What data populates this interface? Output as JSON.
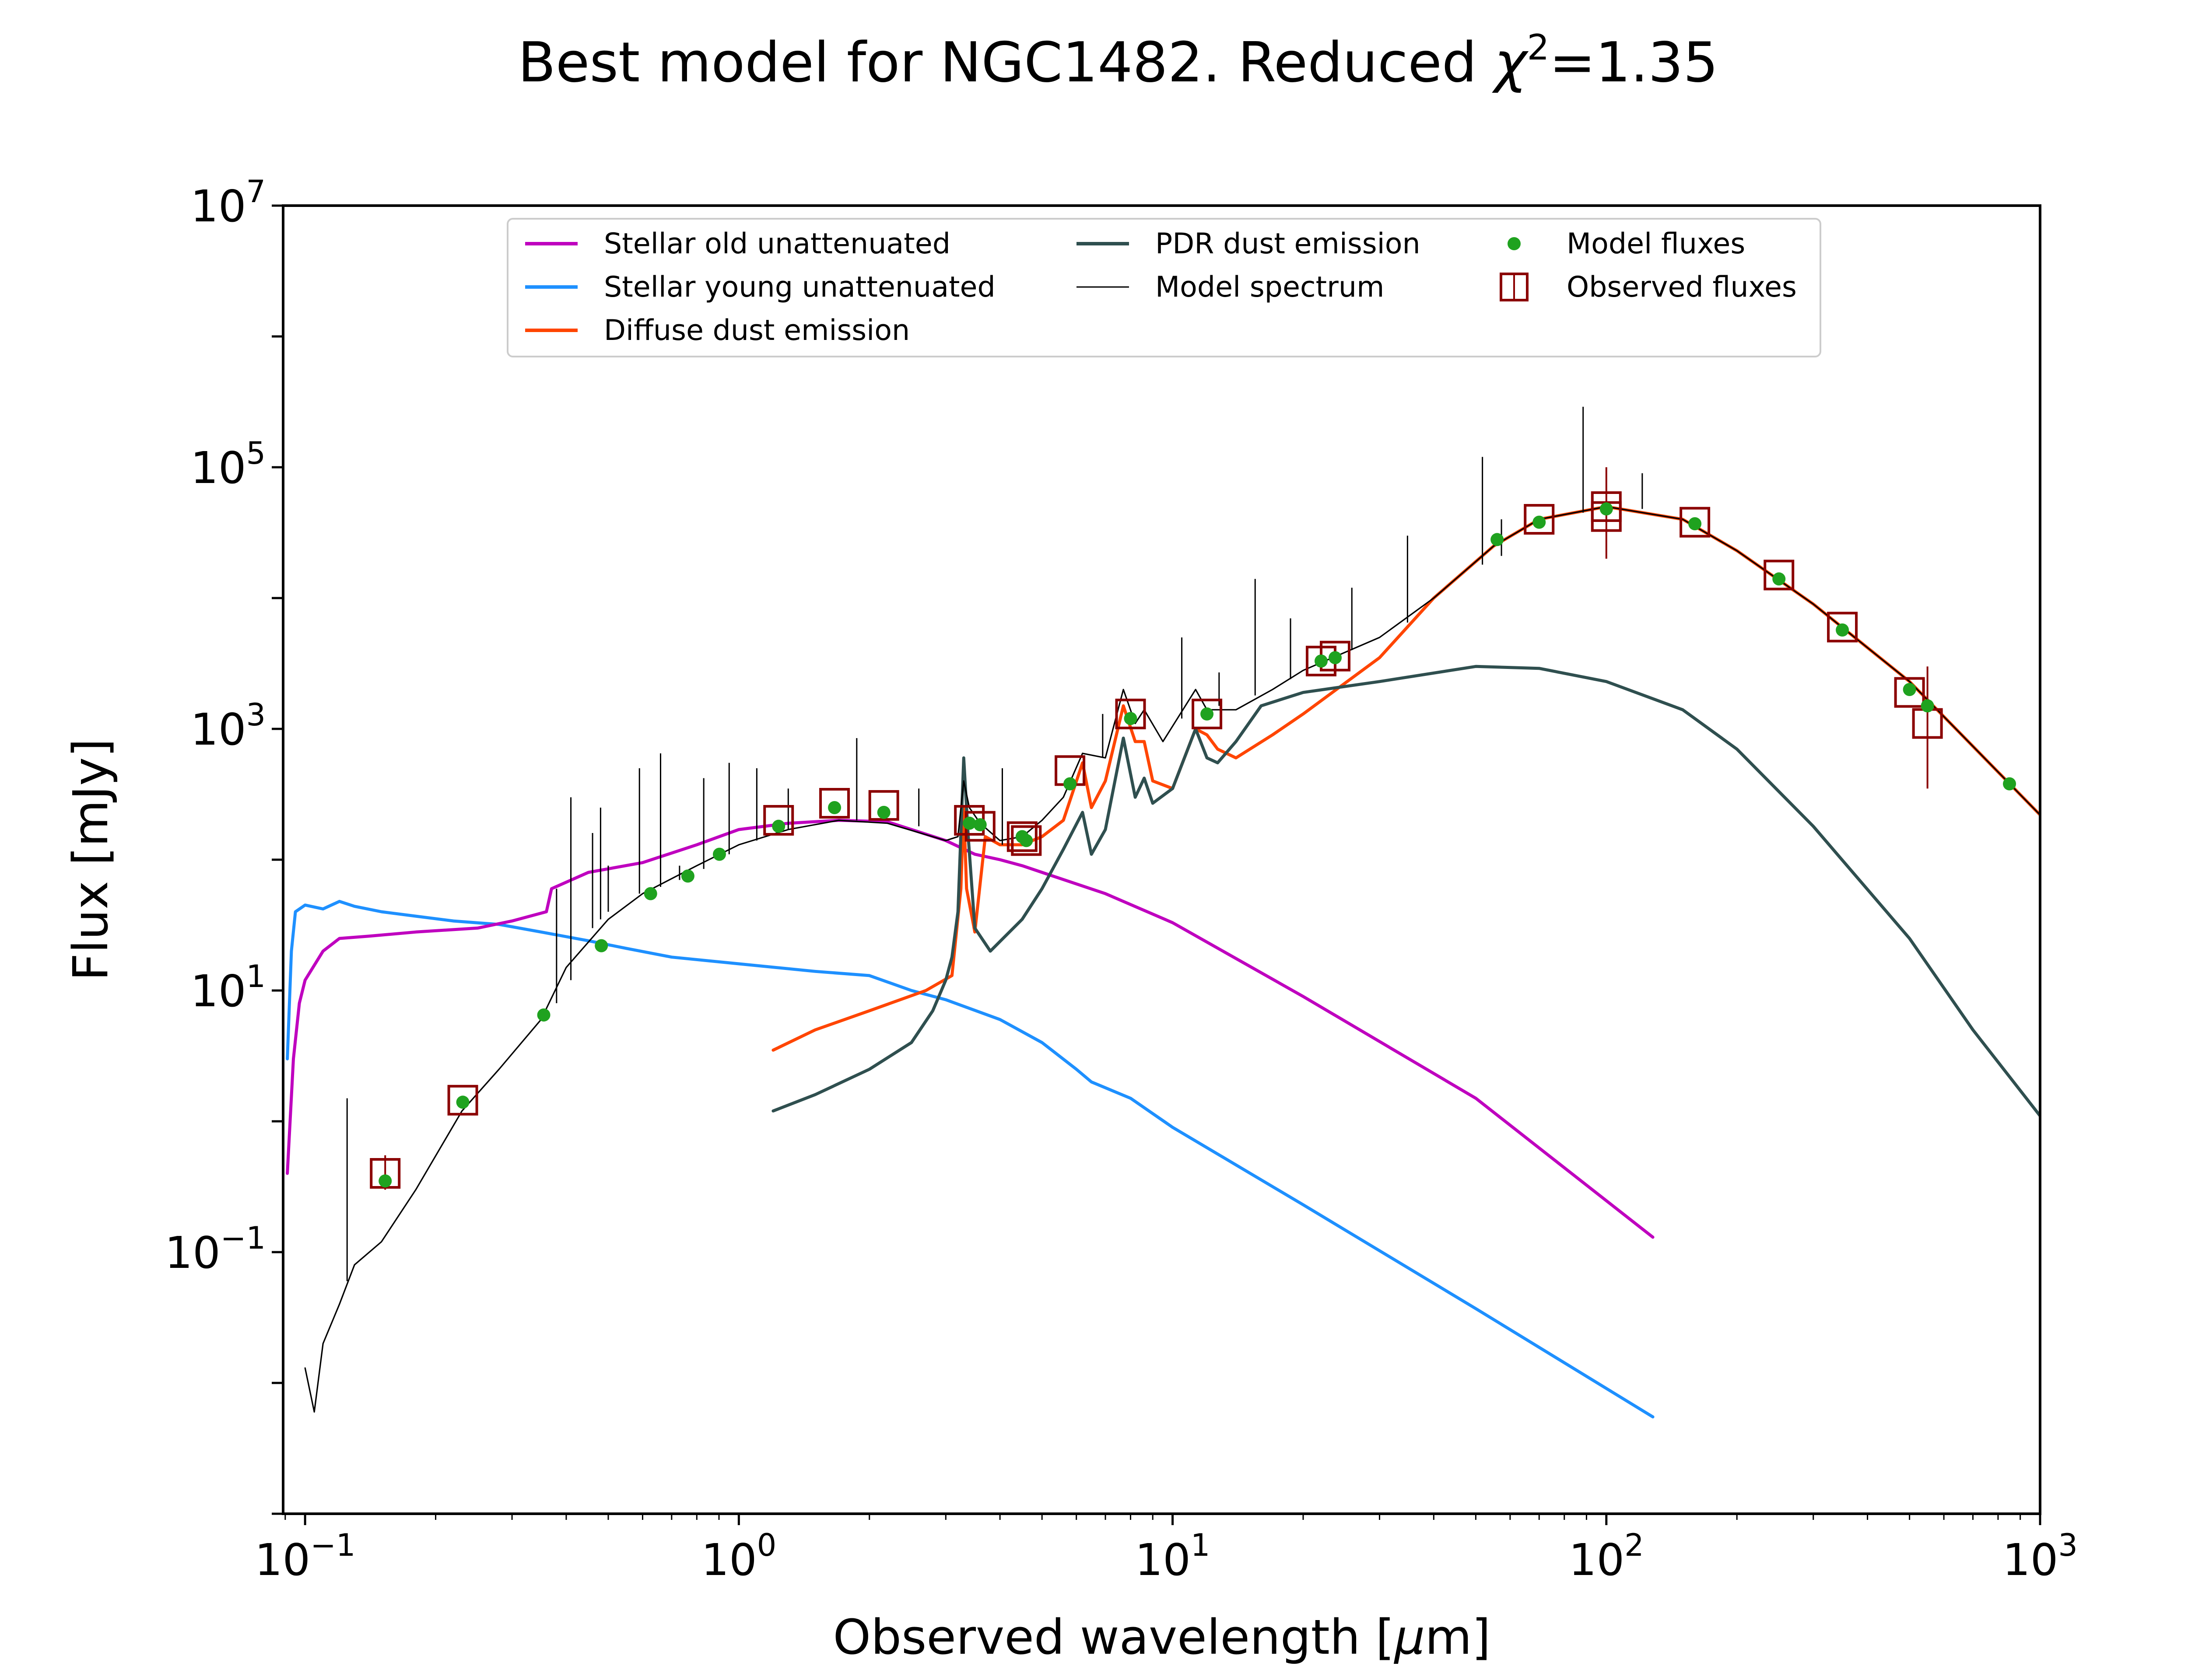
{
  "chart_data": {
    "type": "line",
    "title": "Best model for NGC1482. Reduced χ²=1.35",
    "title_parts": {
      "prefix": "Best model for NGC1482. Reduced ",
      "symbol": "χ",
      "exponent": "2",
      "suffix": "=1.35"
    },
    "xlabel": "Observed wavelength [μm]",
    "xlabel_parts": {
      "prefix": "Observed wavelength [",
      "mu": "μ",
      "suffix": "m]"
    },
    "ylabel": "Flux [mJy]",
    "x_scale": "log",
    "y_scale": "log",
    "xlim": [
      0.089,
      1000
    ],
    "ylim": [
      0.001,
      10000000
    ],
    "x_ticks": [
      {
        "value": 0.1,
        "base": "10",
        "exp": "−1"
      },
      {
        "value": 1,
        "base": "10",
        "exp": "0"
      },
      {
        "value": 10,
        "base": "10",
        "exp": "1"
      },
      {
        "value": 100,
        "base": "10",
        "exp": "2"
      },
      {
        "value": 1000,
        "base": "10",
        "exp": "3"
      }
    ],
    "y_ticks": [
      {
        "value": 0.1,
        "base": "10",
        "exp": "−1"
      },
      {
        "value": 10,
        "base": "10",
        "exp": "1"
      },
      {
        "value": 1000,
        "base": "10",
        "exp": "3"
      },
      {
        "value": 100000,
        "base": "10",
        "exp": "5"
      },
      {
        "value": 10000000,
        "base": "10",
        "exp": "7"
      }
    ],
    "grid": false,
    "legend_position": "top-center",
    "legend": [
      {
        "label": "Stellar old unattenuated",
        "color": "#bf00bf",
        "kind": "line",
        "series": "stellar_old"
      },
      {
        "label": "Stellar young unattenuated",
        "color": "#1e90ff",
        "kind": "line",
        "series": "stellar_young"
      },
      {
        "label": "Diffuse dust emission",
        "color": "#ff4500",
        "kind": "line",
        "series": "diffuse_dust"
      },
      {
        "label": "PDR dust emission",
        "color": "#2f4f4f",
        "kind": "line",
        "series": "pdr_dust"
      },
      {
        "label": "Model spectrum",
        "color": "#000000",
        "kind": "thin-line",
        "series": "model_spectrum"
      },
      {
        "label": "Model fluxes",
        "color": "#1fa21f",
        "kind": "dot",
        "series": "model_fluxes"
      },
      {
        "label": "Observed fluxes",
        "color": "#8b0000",
        "kind": "square",
        "series": "observed_fluxes"
      }
    ],
    "series": [
      {
        "id": "stellar_young",
        "name": "Stellar young unattenuated",
        "color": "#1e90ff",
        "width": 7,
        "points": [
          [
            0.091,
            3
          ],
          [
            0.093,
            20
          ],
          [
            0.095,
            40
          ],
          [
            0.1,
            45
          ],
          [
            0.11,
            42
          ],
          [
            0.12,
            48
          ],
          [
            0.13,
            44
          ],
          [
            0.15,
            40
          ],
          [
            0.18,
            37
          ],
          [
            0.22,
            34
          ],
          [
            0.28,
            32
          ],
          [
            0.35,
            28
          ],
          [
            0.45,
            24
          ],
          [
            0.55,
            21
          ],
          [
            0.7,
            18
          ],
          [
            1.0,
            16
          ],
          [
            1.5,
            14
          ],
          [
            2.0,
            13
          ],
          [
            2.5,
            10
          ],
          [
            3.0,
            8.5
          ],
          [
            4.0,
            6
          ],
          [
            5.0,
            4
          ],
          [
            6.0,
            2.5
          ],
          [
            6.5,
            2
          ],
          [
            8,
            1.5
          ],
          [
            10,
            0.9
          ],
          [
            20,
            0.23
          ],
          [
            50,
            0.037
          ],
          [
            128,
            0.0055
          ]
        ]
      },
      {
        "id": "stellar_old",
        "name": "Stellar old unattenuated",
        "color": "#bf00bf",
        "width": 7,
        "points": [
          [
            0.091,
            0.4
          ],
          [
            0.094,
            3
          ],
          [
            0.097,
            8
          ],
          [
            0.1,
            12
          ],
          [
            0.11,
            20
          ],
          [
            0.12,
            25
          ],
          [
            0.14,
            26
          ],
          [
            0.18,
            28
          ],
          [
            0.25,
            30
          ],
          [
            0.3,
            34
          ],
          [
            0.36,
            40
          ],
          [
            0.37,
            60
          ],
          [
            0.45,
            80
          ],
          [
            0.6,
            95
          ],
          [
            0.8,
            130
          ],
          [
            1.0,
            170
          ],
          [
            1.3,
            190
          ],
          [
            1.7,
            200
          ],
          [
            2.2,
            195
          ],
          [
            3.0,
            140
          ],
          [
            3.5,
            110
          ],
          [
            4.0,
            100
          ],
          [
            4.5,
            90
          ],
          [
            5.0,
            80
          ],
          [
            7,
            55
          ],
          [
            10,
            33
          ],
          [
            20,
            9
          ],
          [
            50,
            1.5
          ],
          [
            128,
            0.13
          ]
        ]
      },
      {
        "id": "diffuse_dust",
        "name": "Diffuse dust emission",
        "color": "#ff4500",
        "width": 7,
        "points": [
          [
            1.2,
            3.5
          ],
          [
            1.5,
            5
          ],
          [
            2.0,
            7
          ],
          [
            2.7,
            10
          ],
          [
            3.1,
            13
          ],
          [
            3.25,
            60
          ],
          [
            3.3,
            250
          ],
          [
            3.35,
            60
          ],
          [
            3.5,
            28
          ],
          [
            3.7,
            150
          ],
          [
            4.0,
            130
          ],
          [
            4.5,
            130
          ],
          [
            5.0,
            150
          ],
          [
            5.6,
            200
          ],
          [
            6.2,
            550
          ],
          [
            6.5,
            250
          ],
          [
            7.0,
            400
          ],
          [
            7.7,
            1500
          ],
          [
            8.2,
            800
          ],
          [
            8.6,
            800
          ],
          [
            9.0,
            400
          ],
          [
            10.0,
            350
          ],
          [
            11.3,
            1000
          ],
          [
            12.0,
            900
          ],
          [
            12.7,
            700
          ],
          [
            14.0,
            600
          ],
          [
            17,
            900
          ],
          [
            20,
            1300
          ],
          [
            30,
            3500
          ],
          [
            40,
            10000
          ],
          [
            55,
            25000
          ],
          [
            70,
            40000
          ],
          [
            100,
            50000
          ],
          [
            150,
            40000
          ],
          [
            200,
            23000
          ],
          [
            300,
            9000
          ],
          [
            500,
            2300
          ],
          [
            1000,
            220
          ]
        ]
      },
      {
        "id": "pdr_dust",
        "name": "PDR dust emission",
        "color": "#2f4f4f",
        "width": 7,
        "points": [
          [
            1.2,
            1.2
          ],
          [
            1.5,
            1.6
          ],
          [
            2.0,
            2.5
          ],
          [
            2.5,
            4
          ],
          [
            2.8,
            7
          ],
          [
            3.0,
            12
          ],
          [
            3.1,
            18
          ],
          [
            3.2,
            40
          ],
          [
            3.3,
            600
          ],
          [
            3.38,
            150
          ],
          [
            3.5,
            30
          ],
          [
            3.8,
            20
          ],
          [
            4.5,
            35
          ],
          [
            5.0,
            60
          ],
          [
            5.6,
            120
          ],
          [
            6.2,
            230
          ],
          [
            6.5,
            110
          ],
          [
            7.0,
            170
          ],
          [
            7.7,
            850
          ],
          [
            8.2,
            300
          ],
          [
            8.6,
            420
          ],
          [
            9.0,
            270
          ],
          [
            10.0,
            350
          ],
          [
            11.3,
            1000
          ],
          [
            12.0,
            600
          ],
          [
            12.7,
            550
          ],
          [
            14,
            800
          ],
          [
            16,
            1500
          ],
          [
            20,
            1900
          ],
          [
            30,
            2300
          ],
          [
            50,
            3000
          ],
          [
            70,
            2900
          ],
          [
            100,
            2300
          ],
          [
            150,
            1400
          ],
          [
            200,
            700
          ],
          [
            300,
            180
          ],
          [
            500,
            25
          ],
          [
            700,
            5
          ],
          [
            1000,
            1.1
          ]
        ]
      },
      {
        "id": "model_spectrum",
        "name": "Model spectrum",
        "color": "#000000",
        "width": 3.2,
        "points": [
          [
            0.1,
            0.013
          ],
          [
            0.105,
            0.006
          ],
          [
            0.11,
            0.02
          ],
          [
            0.12,
            0.04
          ],
          [
            0.13,
            0.08
          ],
          [
            0.15,
            0.12
          ],
          [
            0.18,
            0.3
          ],
          [
            0.23,
            1.2
          ],
          [
            0.28,
            2.5
          ],
          [
            0.35,
            6
          ],
          [
            0.4,
            15
          ],
          [
            0.5,
            35
          ],
          [
            0.6,
            55
          ],
          [
            0.8,
            90
          ],
          [
            1.0,
            130
          ],
          [
            1.3,
            170
          ],
          [
            1.7,
            200
          ],
          [
            2.2,
            190
          ],
          [
            3.0,
            140
          ],
          [
            3.2,
            150
          ],
          [
            3.3,
            400
          ],
          [
            3.4,
            250
          ],
          [
            3.6,
            190
          ],
          [
            4.0,
            140
          ],
          [
            4.5,
            150
          ],
          [
            5.0,
            200
          ],
          [
            5.6,
            300
          ],
          [
            6.2,
            650
          ],
          [
            7.0,
            600
          ],
          [
            7.7,
            2000
          ],
          [
            8.2,
            1100
          ],
          [
            8.6,
            1400
          ],
          [
            9.5,
            800
          ],
          [
            11.3,
            2000
          ],
          [
            12.0,
            1400
          ],
          [
            14,
            1400
          ],
          [
            17,
            2000
          ],
          [
            20,
            2800
          ],
          [
            30,
            5000
          ],
          [
            40,
            10000
          ],
          [
            55,
            25000
          ],
          [
            70,
            40000
          ],
          [
            100,
            50000
          ],
          [
            150,
            40000
          ],
          [
            200,
            23000
          ],
          [
            300,
            9000
          ],
          [
            500,
            2300
          ],
          [
            1000,
            220
          ]
        ]
      },
      {
        "id": "emission_lines",
        "name": "",
        "color": "#000000",
        "width": 3,
        "segments": [
          [
            0.125,
            0.06,
            1.5
          ],
          [
            0.38,
            8,
            60
          ],
          [
            0.41,
            12,
            300
          ],
          [
            0.46,
            30,
            160
          ],
          [
            0.48,
            35,
            250
          ],
          [
            0.5,
            40,
            90
          ],
          [
            0.59,
            55,
            500
          ],
          [
            0.66,
            62,
            650
          ],
          [
            0.73,
            70,
            90
          ],
          [
            0.83,
            85,
            420
          ],
          [
            0.95,
            110,
            550
          ],
          [
            1.1,
            140,
            500
          ],
          [
            1.3,
            170,
            350
          ],
          [
            1.87,
            200,
            850
          ],
          [
            2.6,
            180,
            350
          ],
          [
            4.05,
            130,
            500
          ],
          [
            6.9,
            600,
            1300
          ],
          [
            10.5,
            1200,
            5000
          ],
          [
            12.8,
            1500,
            2700
          ],
          [
            15.5,
            1800,
            14000
          ],
          [
            18.7,
            2400,
            7000
          ],
          [
            25.9,
            4000,
            12000
          ],
          [
            34.8,
            6500,
            30000
          ],
          [
            51.8,
            18000,
            120000
          ],
          [
            57.3,
            21000,
            40000
          ],
          [
            88.4,
            45000,
            290000
          ],
          [
            121,
            48000,
            90000
          ]
        ]
      }
    ],
    "model_fluxes": [
      [
        0.153,
        0.35
      ],
      [
        0.231,
        1.4
      ],
      [
        0.355,
        6.5
      ],
      [
        0.482,
        22
      ],
      [
        0.626,
        55
      ],
      [
        0.763,
        75
      ],
      [
        0.902,
        110
      ],
      [
        1.235,
        180
      ],
      [
        1.662,
        250
      ],
      [
        2.159,
        230
      ],
      [
        3.4,
        190
      ],
      [
        3.6,
        185
      ],
      [
        4.5,
        150
      ],
      [
        4.6,
        140
      ],
      [
        5.8,
        380
      ],
      [
        8.0,
        1200
      ],
      [
        12.0,
        1300
      ],
      [
        22.0,
        3300
      ],
      [
        23.7,
        3500
      ],
      [
        56,
        28000
      ],
      [
        70,
        38000
      ],
      [
        100,
        48000
      ],
      [
        160,
        37000
      ],
      [
        250,
        14000
      ],
      [
        350,
        5700
      ],
      [
        500,
        2000
      ],
      [
        550,
        1500
      ],
      [
        850,
        380
      ]
    ],
    "observed_fluxes": [
      {
        "x": 0.153,
        "y": 0.4,
        "err": [
          0.3,
          0.55
        ]
      },
      {
        "x": 0.231,
        "y": 1.45,
        "err": [
          1.35,
          1.55
        ]
      },
      {
        "x": 1.235,
        "y": 200
      },
      {
        "x": 1.662,
        "y": 270
      },
      {
        "x": 2.159,
        "y": 260
      },
      {
        "x": 3.4,
        "y": 200
      },
      {
        "x": 3.6,
        "y": 180
      },
      {
        "x": 4.5,
        "y": 150
      },
      {
        "x": 4.6,
        "y": 140
      },
      {
        "x": 5.8,
        "y": 480
      },
      {
        "x": 8.0,
        "y": 1300
      },
      {
        "x": 12.0,
        "y": 1300
      },
      {
        "x": 22.0,
        "y": 3300
      },
      {
        "x": 23.7,
        "y": 3600
      },
      {
        "x": 70,
        "y": 40000
      },
      {
        "x": 100,
        "y": 50000
      },
      {
        "x": 100,
        "y": 42000,
        "err": [
          20000,
          100000
        ]
      },
      {
        "x": 160,
        "y": 38000
      },
      {
        "x": 250,
        "y": 15000
      },
      {
        "x": 350,
        "y": 6000
      },
      {
        "x": 500,
        "y": 1900
      },
      {
        "x": 550,
        "y": 1100,
        "err": [
          350,
          3000
        ]
      }
    ]
  }
}
